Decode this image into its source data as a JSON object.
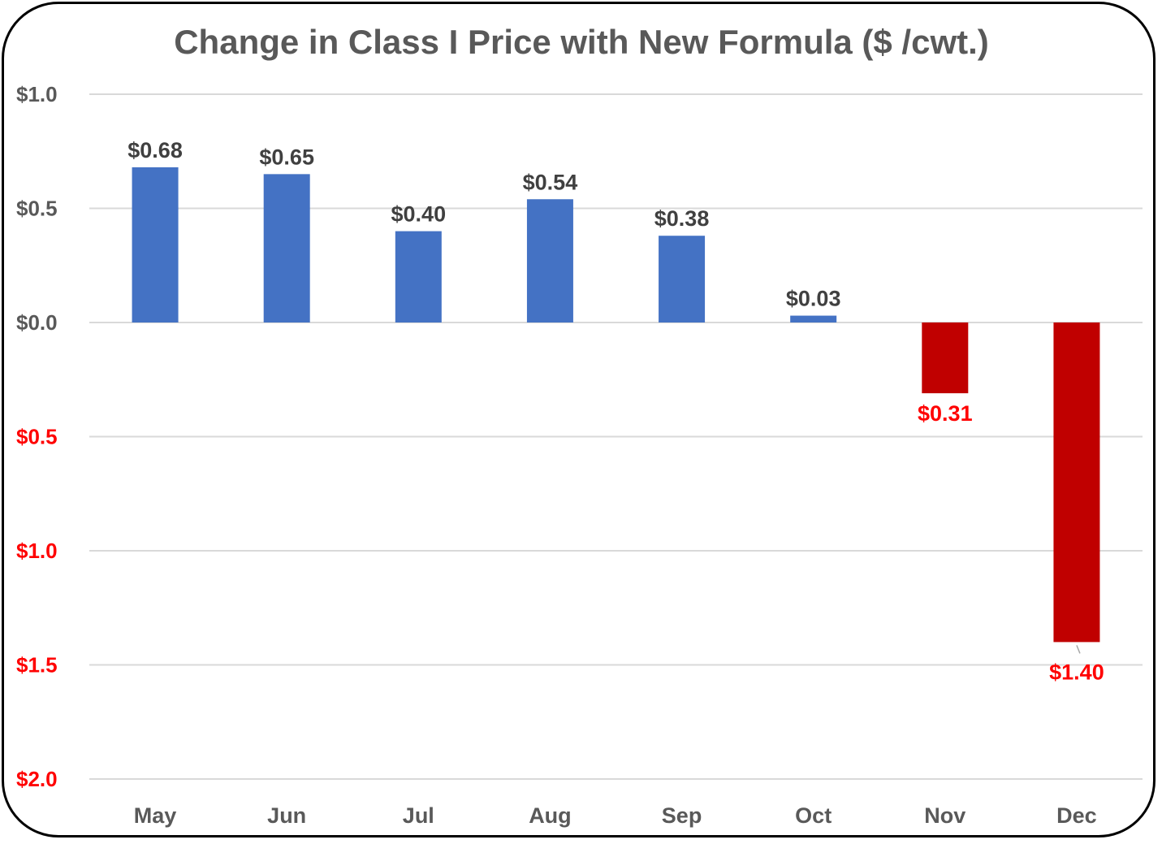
{
  "chart_data": {
    "type": "bar",
    "title": "Change in Class I Price with New Formula ($ /cwt.)",
    "xlabel": "",
    "ylabel": "",
    "categories": [
      "May",
      "Jun",
      "Jul",
      "Aug",
      "Sep",
      "Oct",
      "Nov",
      "Dec"
    ],
    "values": [
      0.68,
      0.65,
      0.4,
      0.54,
      0.38,
      0.03,
      -0.31,
      -1.4
    ],
    "data_labels": [
      "$0.68",
      "$0.65",
      "$0.40",
      "$0.54",
      "$0.38",
      "$0.03",
      "$0.31",
      "$1.40"
    ],
    "ylim": [
      -2.0,
      1.0
    ],
    "y_ticks": [
      1.0,
      0.5,
      0.0,
      -0.5,
      -1.0,
      -1.5,
      -2.0
    ],
    "y_tick_labels": [
      "$1.0",
      "$0.5",
      "$0.0",
      "$0.5",
      "$1.0",
      "$1.5",
      "$2.0"
    ],
    "grid": true,
    "legend": "none",
    "colors": {
      "positive_bar": "#4472C4",
      "negative_bar": "#C00000",
      "positive_text": "#404040",
      "negative_text": "#FF0000",
      "axis_text": "#595959",
      "gridline": "#D9D9D9"
    }
  }
}
